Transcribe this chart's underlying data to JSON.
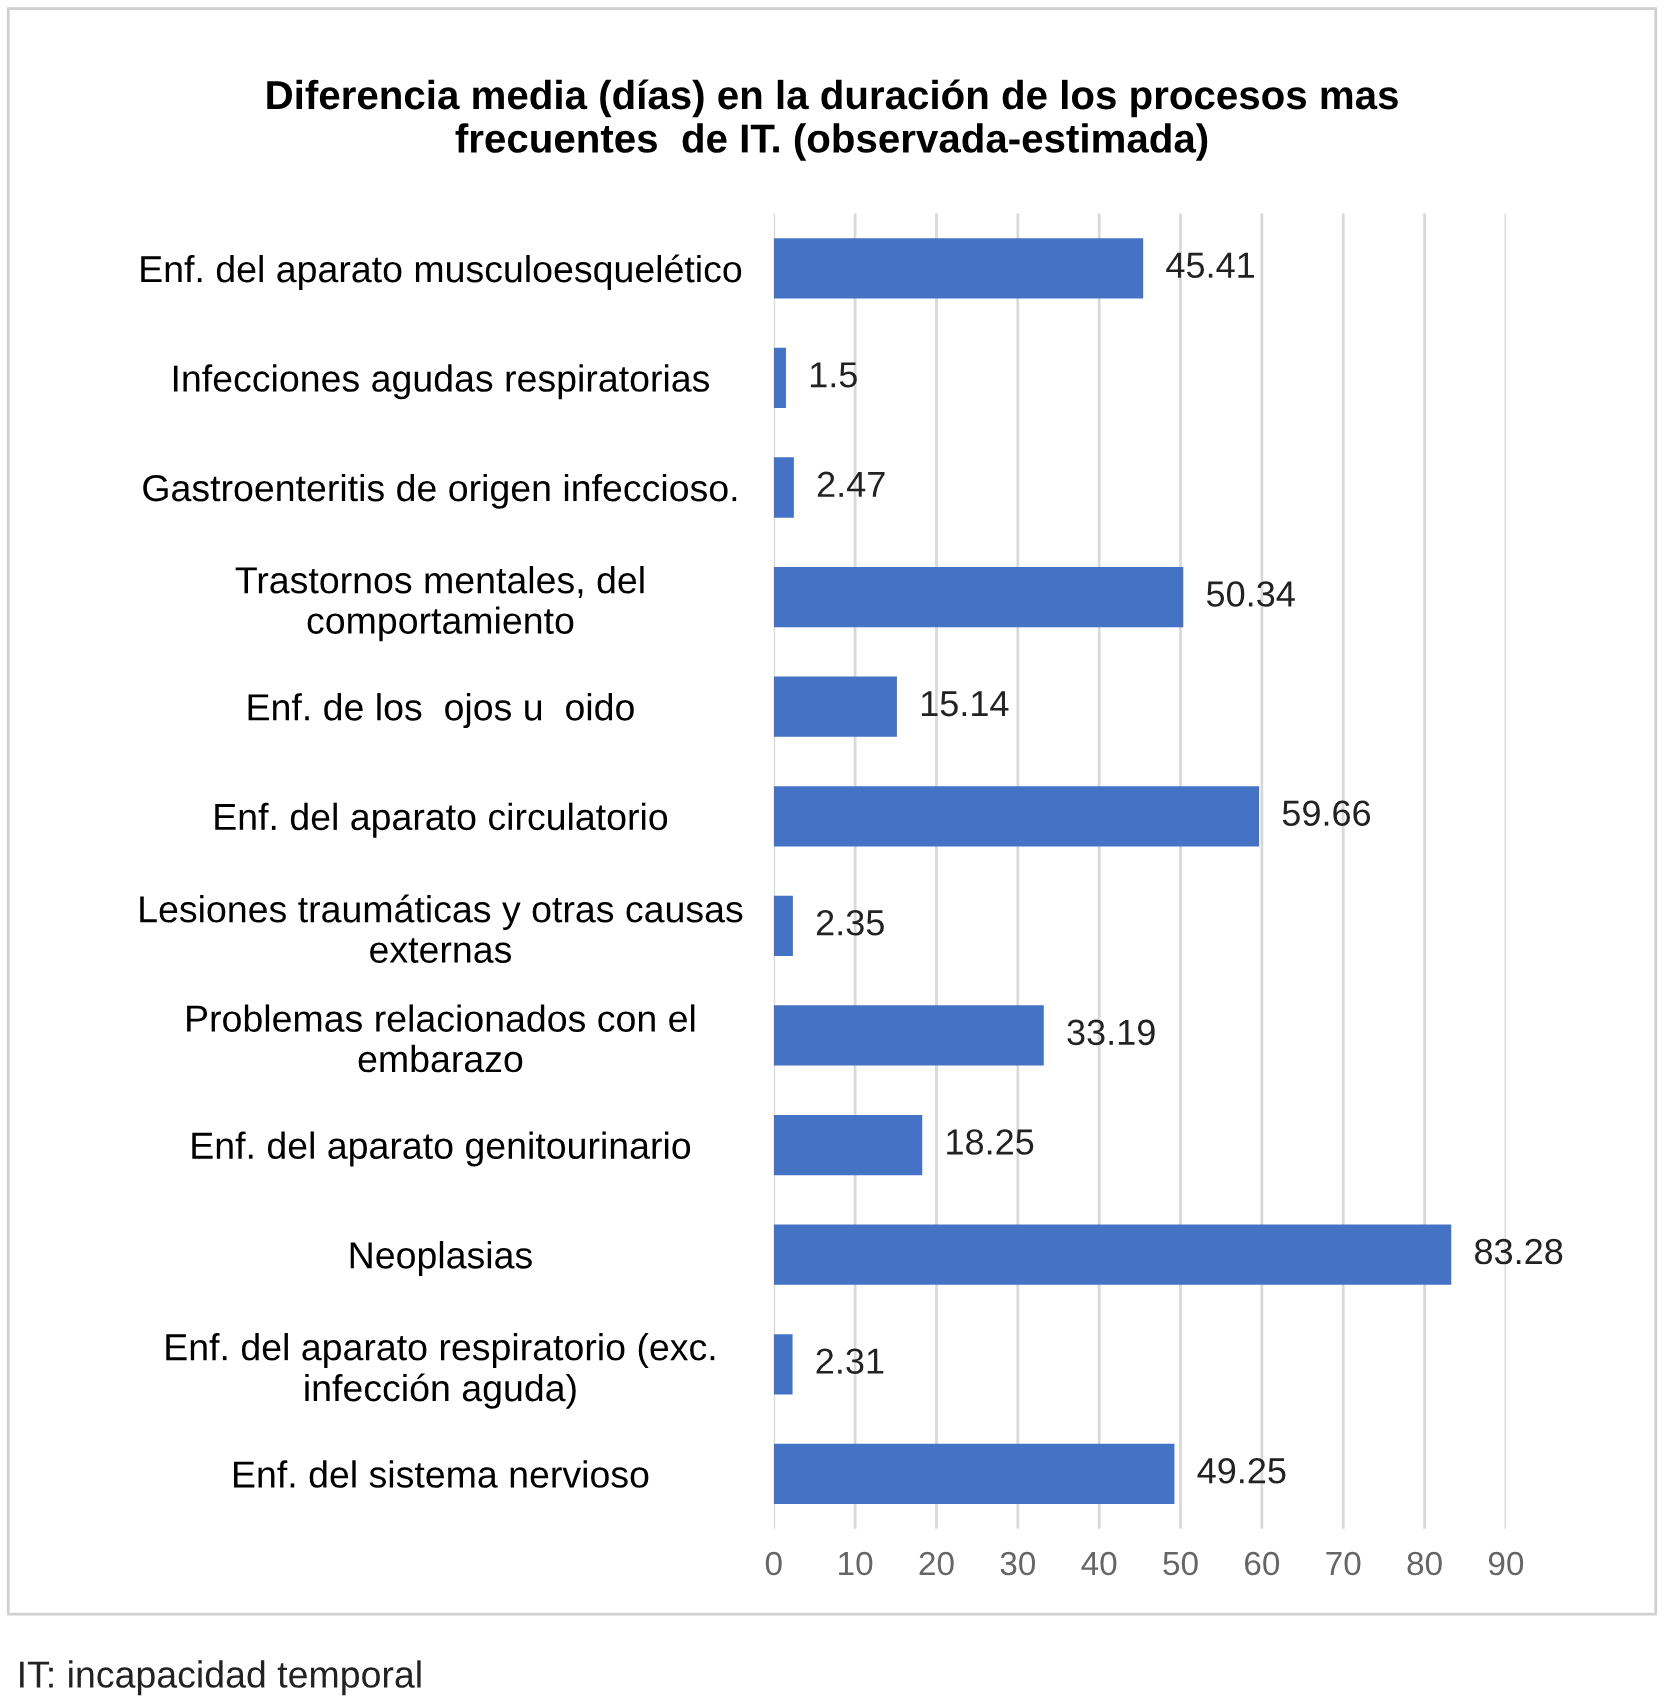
{
  "chart_data": {
    "type": "bar",
    "orientation": "horizontal",
    "title": "Diferencia media (días) en la duración de los procesos mas\nfrecuentes  de IT. (observada-estimada)",
    "categories": [
      "Enf. del aparato musculoesquelético",
      "Infecciones agudas respiratorias",
      "Gastroenteritis de origen infeccioso.",
      "Trastornos mentales, del\ncomportamiento",
      "Enf. de los  ojos u  oido",
      "Enf. del aparato circulatorio",
      "Lesiones traumáticas y otras causas\nexternas",
      "Problemas relacionados con el\nembarazo",
      "Enf. del aparato genitourinario",
      "Neoplasias",
      "Enf. del aparato respiratorio (exc.\ninfección aguda)",
      "Enf. del sistema nervioso"
    ],
    "values": [
      45.41,
      1.5,
      2.47,
      50.34,
      15.14,
      59.66,
      2.35,
      33.19,
      18.25,
      83.28,
      2.31,
      49.25
    ],
    "color": "#4472c4",
    "data_labels": true,
    "xlim": [
      0,
      90
    ],
    "xticks": [
      0,
      10,
      20,
      30,
      40,
      50,
      60,
      70,
      80,
      90
    ],
    "grid": "x",
    "annotations": [
      "IT: incapacidad temporal"
    ]
  }
}
